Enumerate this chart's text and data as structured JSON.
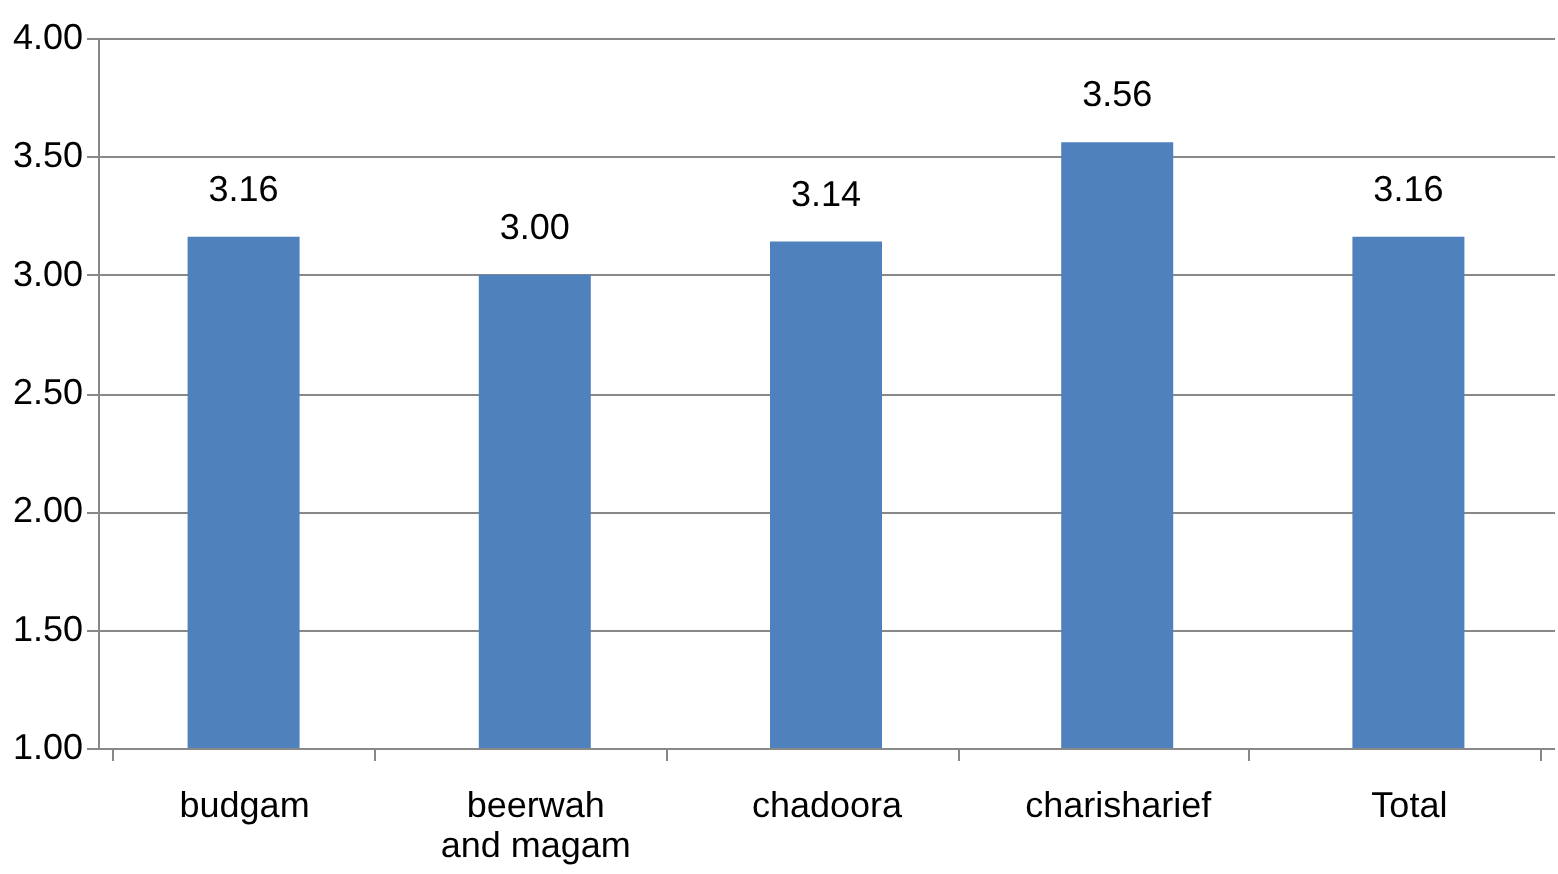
{
  "chart_data": {
    "type": "bar",
    "categories": [
      "budgam",
      "beerwah and magam",
      "chadoora",
      "charisharief",
      "Total"
    ],
    "values": [
      3.16,
      3.0,
      3.14,
      3.56,
      3.16
    ],
    "color": "#4f81bd",
    "value_labels": [
      "3.16",
      "3.00",
      "3.14",
      "3.56",
      "3.16"
    ],
    "ylim": [
      1.0,
      4.0
    ],
    "yticks": [
      {
        "value": 1.0,
        "label": "1.00"
      },
      {
        "value": 1.5,
        "label": "1.50"
      },
      {
        "value": 2.0,
        "label": "2.00"
      },
      {
        "value": 2.5,
        "label": "2.50"
      },
      {
        "value": 3.0,
        "label": "3.00"
      },
      {
        "value": 3.5,
        "label": "3.50"
      },
      {
        "value": 4.0,
        "label": "4.00"
      }
    ],
    "grid": "y"
  }
}
